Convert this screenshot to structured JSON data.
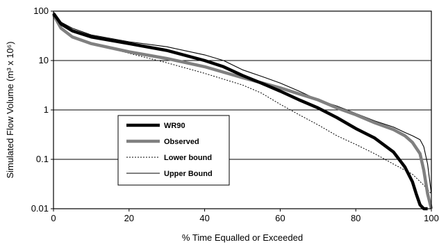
{
  "chart_data": {
    "type": "line",
    "title": "",
    "xlabel": "% Time Equalled or Exceeded",
    "ylabel": "Simulated Flow Volume (m³ x 10⁶)",
    "xlim": [
      0,
      100
    ],
    "ylim": [
      0.01,
      100
    ],
    "y_scale": "log",
    "grid": "horizontal major lines at decades",
    "x_ticks": [
      "0",
      "20",
      "40",
      "60",
      "80",
      "100"
    ],
    "y_ticks": [
      "0.01",
      "0.1",
      "1",
      "10",
      "100"
    ],
    "legend_position": "lower-left inside plot",
    "series": [
      {
        "name": "WR90",
        "color": "#000000",
        "style": "thick",
        "points": [
          [
            0,
            90
          ],
          [
            2,
            55
          ],
          [
            5,
            40
          ],
          [
            10,
            30
          ],
          [
            20,
            22
          ],
          [
            30,
            16
          ],
          [
            40,
            10
          ],
          [
            45,
            7.5
          ],
          [
            50,
            5
          ],
          [
            55,
            3.5
          ],
          [
            60,
            2.4
          ],
          [
            65,
            1.6
          ],
          [
            70,
            1.1
          ],
          [
            75,
            0.7
          ],
          [
            80,
            0.42
          ],
          [
            85,
            0.27
          ],
          [
            90,
            0.14
          ],
          [
            93,
            0.07
          ],
          [
            95,
            0.035
          ],
          [
            96,
            0.02
          ],
          [
            97,
            0.012
          ],
          [
            98,
            0.01
          ],
          [
            99,
            0.01
          ]
        ]
      },
      {
        "name": "Observed",
        "color": "#808080",
        "style": "thick",
        "points": [
          [
            0,
            85
          ],
          [
            2,
            45
          ],
          [
            5,
            30
          ],
          [
            10,
            22
          ],
          [
            20,
            15
          ],
          [
            30,
            11
          ],
          [
            40,
            7.5
          ],
          [
            50,
            4.5
          ],
          [
            60,
            2.8
          ],
          [
            70,
            1.6
          ],
          [
            75,
            1.1
          ],
          [
            80,
            0.8
          ],
          [
            85,
            0.55
          ],
          [
            90,
            0.4
          ],
          [
            93,
            0.3
          ],
          [
            95,
            0.22
          ],
          [
            97,
            0.13
          ],
          [
            98,
            0.06
          ],
          [
            99,
            0.02
          ],
          [
            100,
            0.01
          ]
        ]
      },
      {
        "name": "Lower bound",
        "color": "#000000",
        "style": "dotted",
        "points": [
          [
            0,
            80
          ],
          [
            2,
            45
          ],
          [
            5,
            30
          ],
          [
            10,
            22
          ],
          [
            20,
            14
          ],
          [
            30,
            9
          ],
          [
            40,
            5.5
          ],
          [
            50,
            3.2
          ],
          [
            55,
            2.2
          ],
          [
            60,
            1.3
          ],
          [
            65,
            0.8
          ],
          [
            70,
            0.5
          ],
          [
            75,
            0.3
          ],
          [
            80,
            0.2
          ],
          [
            85,
            0.13
          ],
          [
            90,
            0.08
          ],
          [
            95,
            0.05
          ],
          [
            98,
            0.03
          ],
          [
            100,
            0.02
          ]
        ]
      },
      {
        "name": "Upper Bound",
        "color": "#000000",
        "style": "thin",
        "points": [
          [
            0,
            95
          ],
          [
            2,
            60
          ],
          [
            5,
            45
          ],
          [
            10,
            33
          ],
          [
            20,
            24
          ],
          [
            30,
            19
          ],
          [
            40,
            13
          ],
          [
            45,
            10
          ],
          [
            50,
            6.5
          ],
          [
            55,
            4.8
          ],
          [
            60,
            3.5
          ],
          [
            65,
            2.4
          ],
          [
            70,
            1.6
          ],
          [
            75,
            1.2
          ],
          [
            80,
            0.85
          ],
          [
            85,
            0.6
          ],
          [
            90,
            0.45
          ],
          [
            93,
            0.35
          ],
          [
            95,
            0.3
          ],
          [
            97,
            0.25
          ],
          [
            98,
            0.18
          ],
          [
            99,
            0.08
          ],
          [
            100,
            0.02
          ]
        ]
      }
    ]
  }
}
